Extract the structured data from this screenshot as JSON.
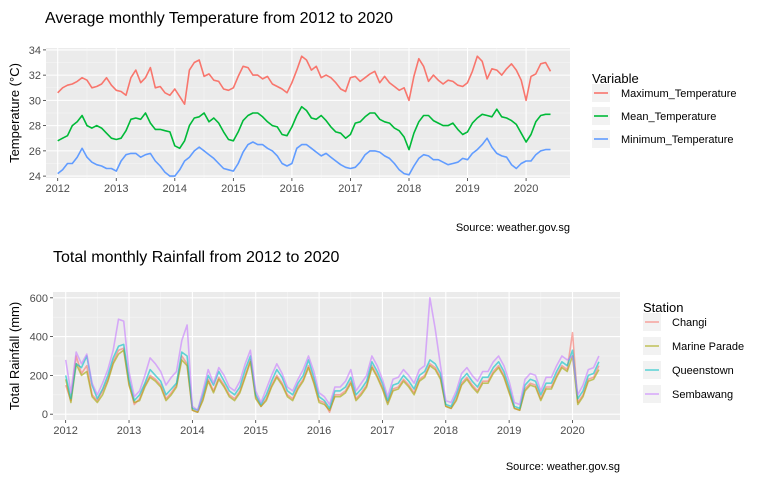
{
  "chart_data": [
    {
      "type": "line",
      "title": "Average monthly Temperature from 2012 to 2020",
      "xlabel": "",
      "ylabel": "Temperature (°C)",
      "xlim": [
        2011.8,
        2020.75
      ],
      "ylim": [
        23.85,
        34.15
      ],
      "x_ticks": [
        "2012",
        "2013",
        "2014",
        "2015",
        "2016",
        "2017",
        "2018",
        "2019",
        "2020"
      ],
      "y_ticks": [
        "24",
        "26",
        "28",
        "30",
        "32",
        "34"
      ],
      "grid": true,
      "legend": {
        "title": "Variable",
        "position": "right"
      },
      "caption": "Source: weather.gov.sg",
      "x_start": 2012.0,
      "x_step": 0.0833333,
      "series": [
        {
          "name": "Maximum_Temperature",
          "color": "#f8766d",
          "values": [
            30.6,
            31.0,
            31.2,
            31.3,
            31.5,
            31.8,
            31.6,
            31.0,
            31.1,
            31.3,
            31.8,
            31.2,
            30.8,
            30.7,
            30.4,
            31.8,
            32.4,
            31.4,
            31.8,
            32.6,
            31.0,
            31.1,
            30.6,
            30.4,
            30.9,
            30.3,
            29.7,
            32.4,
            33.0,
            33.2,
            31.9,
            32.1,
            31.6,
            31.5,
            30.9,
            30.8,
            31.0,
            31.9,
            32.7,
            32.6,
            32.0,
            32.0,
            31.7,
            31.9,
            31.3,
            31.1,
            30.9,
            30.6,
            31.4,
            32.4,
            33.5,
            33.2,
            32.4,
            32.7,
            31.8,
            32.0,
            31.8,
            31.4,
            30.9,
            30.7,
            31.8,
            31.9,
            31.5,
            31.8,
            32.1,
            32.3,
            31.4,
            31.9,
            31.4,
            31.1,
            30.8,
            31.0,
            30.0,
            31.9,
            33.3,
            32.7,
            31.5,
            32.0,
            31.6,
            31.3,
            31.6,
            31.5,
            31.2,
            31.1,
            31.4,
            32.3,
            33.5,
            33.1,
            31.7,
            32.5,
            32.4,
            32.0,
            32.5,
            32.9,
            32.4,
            31.6,
            30.0,
            31.9,
            32.1,
            32.9,
            33.0,
            32.3
          ]
        },
        {
          "name": "Mean_Temperature",
          "color": "#00ba38",
          "values": [
            26.8,
            27.0,
            27.2,
            28.0,
            28.3,
            28.8,
            28.0,
            27.8,
            28.0,
            27.8,
            27.4,
            27.0,
            26.9,
            27.0,
            27.6,
            28.5,
            28.6,
            28.5,
            29.0,
            28.2,
            27.7,
            27.7,
            27.6,
            27.5,
            26.4,
            26.2,
            26.8,
            28.0,
            28.6,
            28.7,
            29.0,
            28.3,
            28.6,
            28.2,
            27.5,
            26.9,
            26.8,
            27.5,
            28.4,
            28.8,
            29.0,
            29.0,
            28.7,
            28.3,
            28.0,
            27.9,
            27.3,
            27.2,
            27.9,
            28.8,
            29.5,
            29.2,
            28.6,
            28.5,
            28.8,
            28.4,
            27.9,
            27.5,
            27.4,
            27.0,
            27.3,
            28.2,
            28.3,
            28.7,
            29.0,
            29.0,
            28.5,
            28.3,
            28.2,
            27.8,
            27.6,
            27.1,
            26.1,
            27.4,
            28.3,
            28.8,
            28.8,
            28.4,
            28.2,
            28.0,
            28.0,
            28.2,
            27.7,
            27.3,
            27.5,
            28.2,
            28.6,
            28.9,
            28.8,
            28.7,
            29.3,
            28.7,
            28.6,
            28.4,
            28.1,
            27.4,
            26.7,
            27.3,
            28.3,
            28.8,
            28.9,
            28.9
          ]
        },
        {
          "name": "Minimum_Temperature",
          "color": "#619cff",
          "values": [
            24.2,
            24.5,
            25.0,
            25.0,
            25.5,
            26.2,
            25.5,
            25.1,
            24.9,
            24.8,
            24.6,
            24.6,
            24.4,
            25.2,
            25.7,
            25.8,
            25.8,
            25.5,
            25.7,
            25.8,
            25.2,
            24.8,
            24.3,
            24.0,
            24.0,
            24.5,
            25.2,
            25.5,
            26.0,
            26.3,
            26.0,
            25.7,
            25.4,
            25.0,
            24.6,
            24.5,
            24.4,
            25.0,
            25.9,
            26.5,
            26.7,
            26.5,
            26.5,
            26.2,
            26.0,
            25.6,
            25.0,
            24.8,
            25.0,
            26.2,
            26.5,
            26.5,
            26.2,
            25.9,
            25.6,
            25.8,
            25.5,
            25.2,
            24.9,
            24.7,
            24.6,
            24.7,
            25.1,
            25.7,
            26.0,
            26.0,
            25.9,
            25.6,
            25.4,
            25.0,
            24.5,
            24.2,
            24.1,
            24.8,
            25.4,
            25.7,
            25.6,
            25.3,
            25.3,
            25.1,
            24.9,
            25.0,
            25.1,
            25.4,
            25.3,
            25.8,
            26.1,
            26.5,
            27.0,
            26.3,
            25.8,
            25.6,
            25.5,
            24.9,
            24.6,
            25.0,
            25.2,
            25.2,
            25.7,
            26.0,
            26.1,
            26.1
          ]
        }
      ]
    },
    {
      "type": "line",
      "title": "Total monthly Rainfall from 2012 to 2020",
      "xlabel": "",
      "ylabel": "Total Rainfall (mm)",
      "xlim": [
        2011.8,
        2020.75
      ],
      "ylim": [
        -30,
        630
      ],
      "x_ticks": [
        "2012",
        "2013",
        "2014",
        "2015",
        "2016",
        "2017",
        "2018",
        "2019",
        "2020"
      ],
      "y_ticks": [
        "0",
        "200",
        "400",
        "600"
      ],
      "grid": true,
      "legend": {
        "title": "Station",
        "position": "right"
      },
      "caption": "Source: weather.gov.sg",
      "x_start": 2012.0,
      "x_step": 0.0833333,
      "series": [
        {
          "name": "Changi",
          "color": "#f8766d",
          "values": [
            150,
            70,
            300,
            210,
            250,
            100,
            70,
            120,
            180,
            270,
            330,
            340,
            160,
            50,
            80,
            150,
            200,
            180,
            150,
            80,
            110,
            150,
            300,
            260,
            20,
            10,
            80,
            180,
            120,
            190,
            150,
            100,
            80,
            120,
            200,
            280,
            90,
            40,
            80,
            150,
            200,
            160,
            100,
            80,
            140,
            180,
            250,
            170,
            70,
            60,
            10,
            100,
            100,
            120,
            170,
            80,
            110,
            150,
            250,
            200,
            140,
            60,
            130,
            140,
            180,
            150,
            110,
            180,
            200,
            260,
            240,
            190,
            40,
            30,
            80,
            160,
            190,
            150,
            120,
            170,
            170,
            220,
            250,
            200,
            120,
            30,
            20,
            130,
            160,
            150,
            80,
            140,
            140,
            200,
            250,
            230,
            420,
            60,
            100,
            180,
            190,
            250
          ]
        },
        {
          "name": "Marine Parade",
          "color": "#a3a500",
          "values": [
            180,
            60,
            260,
            200,
            220,
            90,
            60,
            100,
            170,
            260,
            310,
            330,
            150,
            60,
            70,
            140,
            190,
            170,
            140,
            70,
            100,
            140,
            280,
            250,
            20,
            10,
            70,
            170,
            110,
            180,
            140,
            90,
            70,
            110,
            190,
            270,
            80,
            40,
            70,
            140,
            190,
            150,
            90,
            70,
            130,
            170,
            240,
            160,
            60,
            50,
            20,
            90,
            90,
            110,
            160,
            70,
            100,
            140,
            240,
            190,
            130,
            50,
            120,
            130,
            170,
            140,
            100,
            170,
            190,
            250,
            230,
            180,
            40,
            30,
            70,
            150,
            180,
            140,
            110,
            160,
            160,
            210,
            240,
            190,
            110,
            30,
            20,
            120,
            150,
            140,
            70,
            130,
            130,
            190,
            240,
            220,
            300,
            50,
            90,
            170,
            180,
            230
          ]
        },
        {
          "name": "Queenstown",
          "color": "#00bfc4",
          "values": [
            200,
            80,
            260,
            240,
            300,
            150,
            80,
            130,
            200,
            290,
            350,
            360,
            180,
            70,
            100,
            160,
            230,
            200,
            170,
            100,
            130,
            160,
            320,
            300,
            30,
            20,
            100,
            200,
            150,
            220,
            170,
            120,
            100,
            140,
            230,
            300,
            100,
            50,
            100,
            170,
            230,
            190,
            120,
            100,
            160,
            200,
            280,
            190,
            90,
            70,
            30,
            120,
            120,
            140,
            190,
            100,
            130,
            170,
            270,
            220,
            160,
            70,
            150,
            160,
            200,
            170,
            130,
            200,
            220,
            280,
            260,
            210,
            50,
            40,
            100,
            180,
            210,
            170,
            140,
            190,
            190,
            240,
            270,
            220,
            140,
            40,
            30,
            150,
            180,
            170,
            100,
            160,
            160,
            220,
            270,
            250,
            330,
            80,
            120,
            200,
            210,
            270
          ]
        },
        {
          "name": "Sembawang",
          "color": "#c77cff",
          "values": [
            280,
            110,
            320,
            260,
            310,
            160,
            100,
            160,
            230,
            330,
            490,
            480,
            220,
            90,
            120,
            200,
            290,
            260,
            220,
            150,
            190,
            220,
            380,
            460,
            40,
            20,
            120,
            230,
            160,
            240,
            200,
            140,
            120,
            170,
            260,
            330,
            120,
            60,
            130,
            200,
            260,
            210,
            140,
            120,
            180,
            230,
            300,
            220,
            110,
            90,
            50,
            140,
            140,
            170,
            230,
            120,
            160,
            200,
            300,
            250,
            180,
            90,
            180,
            190,
            230,
            200,
            160,
            230,
            250,
            600,
            440,
            250,
            70,
            60,
            120,
            210,
            240,
            200,
            170,
            220,
            220,
            270,
            300,
            250,
            170,
            60,
            50,
            180,
            210,
            200,
            120,
            190,
            190,
            250,
            300,
            280,
            300,
            100,
            150,
            230,
            240,
            300
          ]
        }
      ]
    }
  ]
}
